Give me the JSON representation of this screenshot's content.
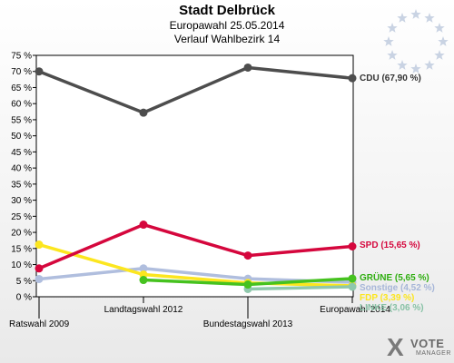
{
  "header": {
    "title": "Stadt Delbrück",
    "subtitle": "Europawahl 25.05.2014",
    "subtitle2": "Verlauf Wahlbezirk 14"
  },
  "logo": {
    "mark": "X",
    "line1": "VOTE",
    "line2": "MANAGER"
  },
  "icons": {
    "eu_flag": "eu-stars-icon"
  },
  "chart_data": {
    "type": "line",
    "categories": [
      "Ratswahl 2009",
      "Landtagswahl 2012",
      "Bundestagswahl 2013",
      "Europawahl 2014"
    ],
    "ylim": [
      0,
      75
    ],
    "yticks": [
      "0 %",
      "5 %",
      "10 %",
      "15 %",
      "20 %",
      "25 %",
      "30 %",
      "35 %",
      "40 %",
      "45 %",
      "50 %",
      "55 %",
      "60 %",
      "65 %",
      "70 %",
      "75 %"
    ],
    "grid": false,
    "series": [
      {
        "name": "Sonstige",
        "label": "Sonstige (4,52 %)",
        "color": "#b0bede",
        "values": [
          5.5,
          8.8,
          5.6,
          4.5
        ]
      },
      {
        "name": "FDP",
        "label": "FDP (3,39 %)",
        "color": "#fce61f",
        "values": [
          16.2,
          6.9,
          4.3,
          3.4
        ]
      },
      {
        "name": "LINKE",
        "label": "LINKE (3,06 %)",
        "color": "#8fc8ac",
        "values": [
          null,
          null,
          2.4,
          3.1
        ]
      },
      {
        "name": "GRÜNE",
        "label": "GRÜNE (5,65 %)",
        "color": "#46c21f",
        "values": [
          null,
          5.2,
          3.8,
          5.65
        ]
      },
      {
        "name": "SPD",
        "label": "SPD (15,65 %)",
        "color": "#d5073d",
        "values": [
          8.8,
          22.4,
          12.8,
          15.65
        ]
      },
      {
        "name": "CDU",
        "label": "CDU (67,90 %)",
        "color": "#4d4d4d",
        "values": [
          70.0,
          57.2,
          71.2,
          67.9
        ]
      }
    ]
  }
}
